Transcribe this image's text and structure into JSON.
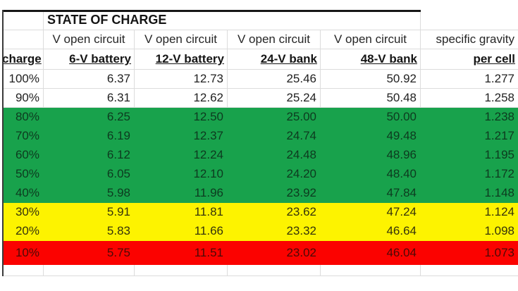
{
  "title": "STATE OF CHARGE",
  "colors": {
    "white": "#ffffff",
    "green": "#18a24c",
    "yellow": "#fdf300",
    "red": "#fb0200"
  },
  "table": {
    "headers": {
      "top": [
        "",
        "V open circuit",
        "V open circuit",
        "V open circuit",
        "V open circuit",
        "specific gravity"
      ],
      "bottom": [
        "charge",
        "6-V battery",
        "12-V battery",
        "24-V bank",
        "48-V bank",
        "per cell"
      ]
    },
    "rows": [
      {
        "zone": "white",
        "cells": [
          "100%",
          "6.37",
          "12.73",
          "25.46",
          "50.92",
          "1.277"
        ]
      },
      {
        "zone": "white",
        "cells": [
          "90%",
          "6.31",
          "12.62",
          "25.24",
          "50.48",
          "1.258"
        ]
      },
      {
        "zone": "green",
        "cells": [
          "80%",
          "6.25",
          "12.50",
          "25.00",
          "50.00",
          "1.238"
        ]
      },
      {
        "zone": "green",
        "cells": [
          "70%",
          "6.19",
          "12.37",
          "24.74",
          "49.48",
          "1.217"
        ]
      },
      {
        "zone": "green",
        "cells": [
          "60%",
          "6.12",
          "12.24",
          "24.48",
          "48.96",
          "1.195"
        ]
      },
      {
        "zone": "green",
        "cells": [
          "50%",
          "6.05",
          "12.10",
          "24.20",
          "48.40",
          "1.172"
        ]
      },
      {
        "zone": "green",
        "cells": [
          "40%",
          "5.98",
          "11.96",
          "23.92",
          "47.84",
          "1.148"
        ]
      },
      {
        "zone": "yellow",
        "cells": [
          "30%",
          "5.91",
          "11.81",
          "23.62",
          "47.24",
          "1.124"
        ]
      },
      {
        "zone": "yellow",
        "cells": [
          "20%",
          "5.83",
          "11.66",
          "23.32",
          "46.64",
          "1.098"
        ]
      },
      {
        "zone": "red",
        "cells": [
          "10%",
          "5.75",
          "11.51",
          "23.02",
          "46.04",
          "1.073"
        ]
      }
    ]
  }
}
